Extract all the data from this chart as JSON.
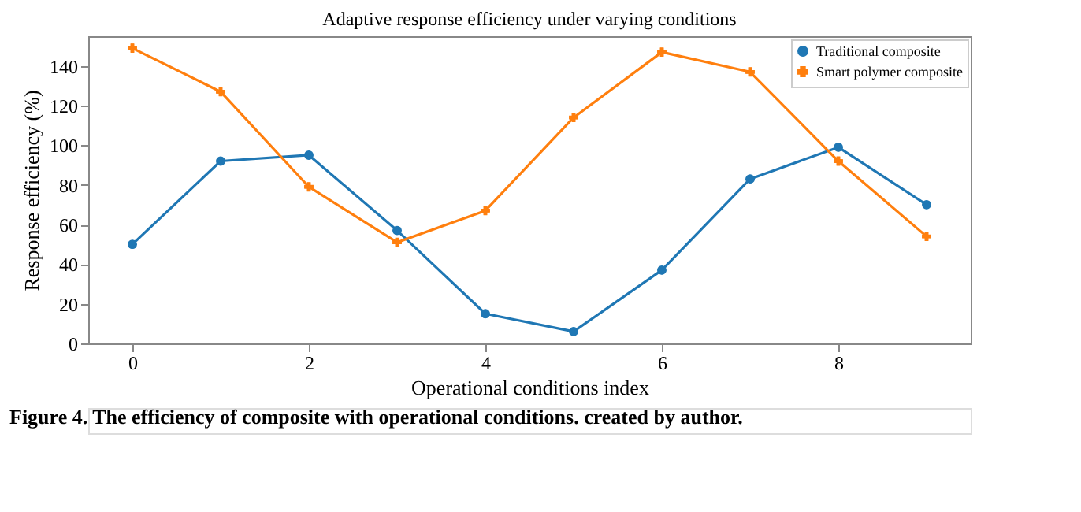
{
  "chart_data": {
    "type": "line",
    "title": "Adaptive response efficiency under varying conditions",
    "xlabel": "Operational conditions index",
    "ylabel": "Response efficiency (%)",
    "x": [
      0,
      1,
      2,
      3,
      4,
      5,
      6,
      7,
      8,
      9
    ],
    "series": [
      {
        "name": "Traditional composite",
        "color": "#1f77b4",
        "marker": "circle",
        "values": [
          50,
          92,
          95,
          57,
          15,
          6,
          37,
          83,
          99,
          70
        ]
      },
      {
        "name": "Smart polymer composite",
        "color": "#ff7f0e",
        "marker": "cross",
        "values": [
          149,
          127,
          79,
          51,
          67,
          114,
          147,
          137,
          92,
          54
        ]
      }
    ],
    "xlim": [
      -0.5,
      9.5
    ],
    "ylim": [
      0,
      155
    ],
    "xticks": [
      0,
      2,
      4,
      6,
      8
    ],
    "yticks": [
      0,
      20,
      40,
      60,
      80,
      100,
      120,
      140
    ],
    "grid": false,
    "legend": "top right",
    "line_style": "solid",
    "annotations": [
      "Figure 4. The efficiency of composite with operational conditions. created by author."
    ]
  }
}
